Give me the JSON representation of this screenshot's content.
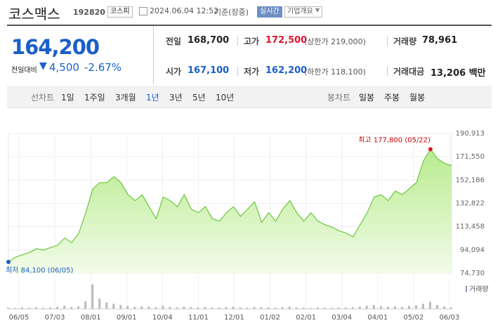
{
  "header": {
    "name": "코스맥스",
    "code": "192820",
    "market": "코스피",
    "datetime": "2024.06.04 12:52",
    "status": "기준(장중)",
    "realtime": "실시간",
    "overview": "기업개요"
  },
  "quote": {
    "price": "164,200",
    "change_label": "전일대비",
    "change": "4,500",
    "rate": "-2.67%"
  },
  "stats": [
    [
      {
        "label": "전일",
        "value": "168,700",
        "color": "#222"
      },
      {
        "label": "고가",
        "value": "172,500",
        "extra": "(상한가 219,000)",
        "color": "#e0142c"
      },
      {
        "label": "거래량",
        "value": "78,961",
        "color": "#222"
      }
    ],
    [
      {
        "label": "시가",
        "value": "167,100",
        "color": "#1a5fc9"
      },
      {
        "label": "저가",
        "value": "162,200",
        "extra": "(하한가 118,100)",
        "color": "#1a5fc9"
      },
      {
        "label": "거래대금",
        "value": "13,206 백만",
        "color": "#222"
      }
    ]
  ],
  "tabs": {
    "line_label": "선차트",
    "line_periods": [
      "1일",
      "1주일",
      "3개월",
      "1년",
      "3년",
      "5년",
      "10년"
    ],
    "selected": 3,
    "candle_label": "봉차트",
    "candle_periods": [
      "일봉",
      "주봉",
      "월봉"
    ]
  },
  "chart_data": {
    "type": "line",
    "color": "#6cc63f",
    "ylim": [
      74730,
      190913
    ],
    "yticks": [
      {
        "value": 190913,
        "label": "190,913"
      },
      {
        "value": 171550,
        "label": "171,550"
      },
      {
        "value": 152186,
        "label": "152,186"
      },
      {
        "value": 132822,
        "label": "132,822"
      },
      {
        "value": 113458,
        "label": "113,458"
      },
      {
        "value": 94094,
        "label": "94,094"
      },
      {
        "value": 74730,
        "label": "74,730"
      }
    ],
    "xticks": [
      "06/05",
      "07/03",
      "08/01",
      "09/01",
      "10/04",
      "11/01",
      "12/01",
      "01/02",
      "02/01",
      "03/04",
      "04/01",
      "05/02",
      "06/03"
    ],
    "values": [
      84100,
      88000,
      90000,
      92000,
      95000,
      94000,
      96000,
      98000,
      104000,
      100000,
      108000,
      125000,
      145000,
      150000,
      150000,
      155000,
      150000,
      140000,
      135000,
      140000,
      130000,
      120000,
      138000,
      135000,
      130000,
      140000,
      128000,
      125000,
      130000,
      120000,
      118000,
      125000,
      130000,
      122000,
      128000,
      134000,
      117000,
      125000,
      118000,
      128000,
      135000,
      125000,
      118000,
      125000,
      118000,
      115000,
      113000,
      110000,
      108000,
      105000,
      115000,
      125000,
      138000,
      140000,
      135000,
      143000,
      140000,
      145000,
      150000,
      168000,
      177800,
      170000,
      166000,
      164200
    ],
    "high_label": "최고 177,800 (05/22)",
    "low_label": "최저 84,100 (06/05)",
    "volume_label": "거래량",
    "volume": [
      5,
      4,
      6,
      5,
      7,
      4,
      6,
      8,
      12,
      7,
      10,
      30,
      95,
      40,
      25,
      20,
      15,
      12,
      8,
      10,
      9,
      7,
      12,
      8,
      6,
      9,
      7,
      6,
      8,
      5,
      6,
      7,
      9,
      6,
      5,
      8,
      7,
      6,
      5,
      7,
      9,
      6,
      5,
      4,
      6,
      5,
      4,
      5,
      6,
      7,
      9,
      12,
      15,
      11,
      9,
      10,
      8,
      12,
      14,
      20,
      28,
      15,
      10,
      6
    ]
  }
}
